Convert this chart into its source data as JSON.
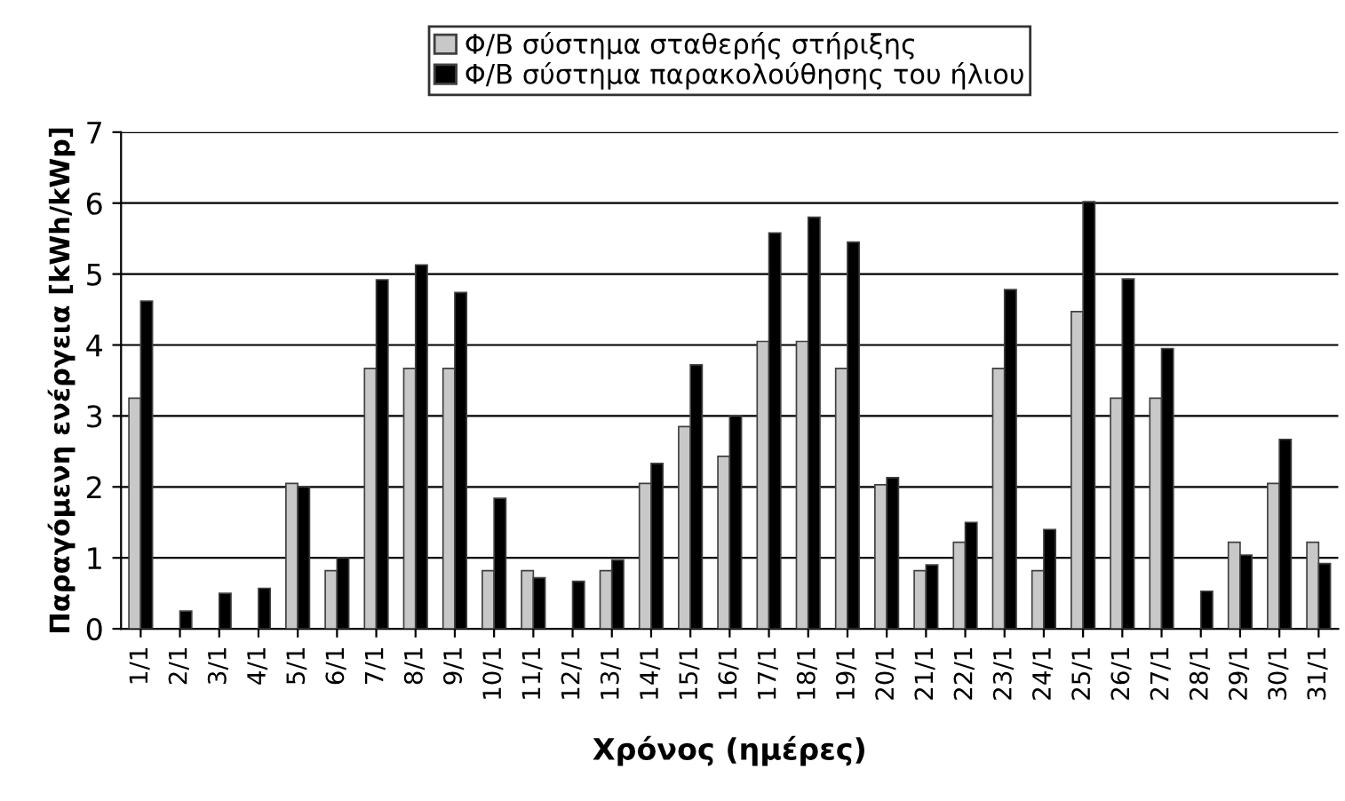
{
  "chart_data": {
    "type": "bar",
    "xlabel": "Χρόνος (ημέρες)",
    "ylabel": "Παραγόμενη ενέργεια [kWh/kWp]",
    "categories": [
      "1/1",
      "2/1",
      "3/1",
      "4/1",
      "5/1",
      "6/1",
      "7/1",
      "8/1",
      "9/1",
      "10/1",
      "11/1",
      "12/1",
      "13/1",
      "14/1",
      "15/1",
      "16/1",
      "17/1",
      "18/1",
      "19/1",
      "20/1",
      "21/1",
      "22/1",
      "23/1",
      "24/1",
      "25/1",
      "26/1",
      "27/1",
      "28/1",
      "29/1",
      "30/1",
      "31/1"
    ],
    "series": [
      {
        "name": "Φ/Β σύστημα σταθερής στήριξης",
        "color": "#c8c8c8",
        "values": [
          3.25,
          null,
          null,
          null,
          2.05,
          0.82,
          3.67,
          3.67,
          3.67,
          0.82,
          0.82,
          null,
          0.82,
          2.05,
          2.85,
          2.43,
          4.05,
          4.05,
          3.67,
          2.03,
          0.82,
          1.22,
          3.67,
          0.82,
          4.47,
          3.25,
          3.25,
          null,
          1.22,
          2.05,
          1.22
        ]
      },
      {
        "name": "Φ/Β σύστημα παρακολούθησης του ήλιου",
        "color": "#000000",
        "values": [
          4.62,
          0.25,
          0.5,
          0.57,
          2.0,
          1.0,
          4.92,
          5.13,
          4.74,
          1.84,
          0.72,
          0.67,
          0.97,
          2.33,
          3.72,
          3.0,
          5.58,
          5.8,
          5.45,
          2.13,
          0.9,
          1.5,
          4.78,
          1.4,
          6.02,
          4.93,
          3.95,
          0.53,
          1.04,
          2.67,
          0.92
        ]
      }
    ],
    "ylim": [
      0,
      7
    ],
    "yticks": [
      0,
      1,
      2,
      3,
      4,
      5,
      6,
      7
    ],
    "grid": "y",
    "legend": "top"
  }
}
